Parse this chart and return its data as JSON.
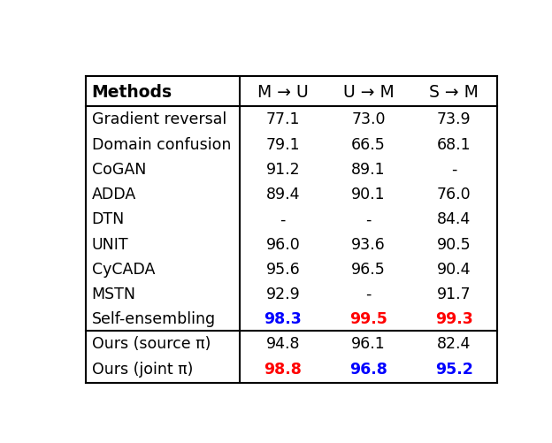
{
  "columns": [
    "Methods",
    "M → U",
    "U → M",
    "S → M"
  ],
  "rows": [
    {
      "method": "Gradient reversal",
      "vals": [
        "77.1",
        "73.0",
        "73.9"
      ],
      "colors": [
        "black",
        "black",
        "black"
      ],
      "bold": [
        false,
        false,
        false
      ]
    },
    {
      "method": "Domain confusion",
      "vals": [
        "79.1",
        "66.5",
        "68.1"
      ],
      "colors": [
        "black",
        "black",
        "black"
      ],
      "bold": [
        false,
        false,
        false
      ]
    },
    {
      "method": "CoGAN",
      "vals": [
        "91.2",
        "89.1",
        "-"
      ],
      "colors": [
        "black",
        "black",
        "black"
      ],
      "bold": [
        false,
        false,
        false
      ]
    },
    {
      "method": "ADDA",
      "vals": [
        "89.4",
        "90.1",
        "76.0"
      ],
      "colors": [
        "black",
        "black",
        "black"
      ],
      "bold": [
        false,
        false,
        false
      ]
    },
    {
      "method": "DTN",
      "vals": [
        "-",
        "-",
        "84.4"
      ],
      "colors": [
        "black",
        "black",
        "black"
      ],
      "bold": [
        false,
        false,
        false
      ]
    },
    {
      "method": "UNIT",
      "vals": [
        "96.0",
        "93.6",
        "90.5"
      ],
      "colors": [
        "black",
        "black",
        "black"
      ],
      "bold": [
        false,
        false,
        false
      ]
    },
    {
      "method": "CyCADA",
      "vals": [
        "95.6",
        "96.5",
        "90.4"
      ],
      "colors": [
        "black",
        "black",
        "black"
      ],
      "bold": [
        false,
        false,
        false
      ]
    },
    {
      "method": "MSTN",
      "vals": [
        "92.9",
        "-",
        "91.7"
      ],
      "colors": [
        "black",
        "black",
        "black"
      ],
      "bold": [
        false,
        false,
        false
      ]
    },
    {
      "method": "Self-ensembling",
      "vals": [
        "98.3",
        "99.5",
        "99.3"
      ],
      "colors": [
        "#0000ff",
        "#ff0000",
        "#ff0000"
      ],
      "bold": [
        true,
        true,
        true
      ]
    }
  ],
  "rows2": [
    {
      "method": "Ours (source π)",
      "vals": [
        "94.8",
        "96.1",
        "82.4"
      ],
      "colors": [
        "black",
        "black",
        "black"
      ],
      "bold": [
        false,
        false,
        false
      ]
    },
    {
      "method": "Ours (joint π)",
      "vals": [
        "98.8",
        "96.8",
        "95.2"
      ],
      "colors": [
        "#ff0000",
        "#0000ff",
        "#0000ff"
      ],
      "bold": [
        true,
        true,
        true
      ]
    }
  ],
  "bg_color": "white",
  "border_color": "black",
  "fig_width": 6.24,
  "fig_height": 5.02
}
